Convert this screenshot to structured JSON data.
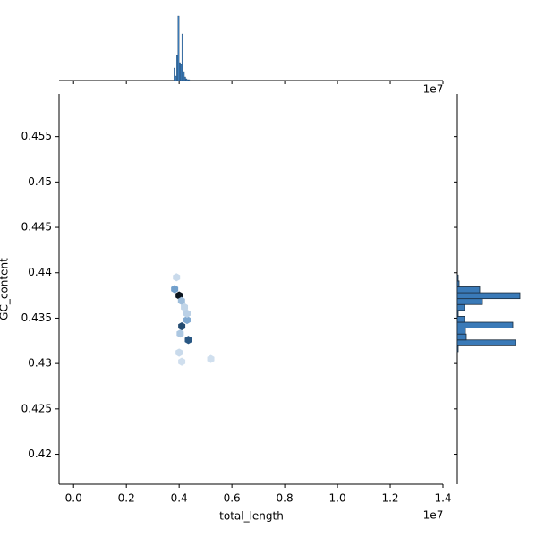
{
  "chart_data": {
    "type": "hexbin",
    "xlabel": "total_length",
    "ylabel": "GC_content",
    "offset_text": "1e7",
    "color": "#3a7ab8",
    "xlim": [
      -0.055,
      1.4
    ],
    "ylim": [
      0.4167,
      0.4597
    ],
    "xticks": [
      {
        "value": 0,
        "label": "0.0"
      },
      0.2,
      0.4,
      0.6,
      0.8,
      {
        "value": 1,
        "label": "1.0"
      },
      1.2,
      1.4
    ],
    "yticks": [
      0.42,
      0.425,
      0.43,
      0.435,
      0.44,
      0.445,
      0.45,
      0.455
    ],
    "hexbins": {
      "x": [
        0.4,
        0.383,
        0.409,
        0.43,
        0.41,
        0.404,
        0.435,
        0.39,
        0.42,
        0.4,
        0.41,
        0.43,
        0.52
      ],
      "y": [
        0.4375,
        0.4382,
        0.4369,
        0.4348,
        0.4341,
        0.4333,
        0.4326,
        0.4395,
        0.4362,
        0.4312,
        0.4302,
        0.4355,
        0.4305
      ],
      "counts": [
        40,
        14,
        8,
        12,
        30,
        6,
        28,
        2,
        3,
        2,
        1,
        4,
        1
      ]
    },
    "x_hist": {
      "bins": [
        0.38,
        0.385,
        0.39,
        0.395,
        0.4,
        0.405,
        0.41,
        0.415,
        0.42,
        0.425,
        0.43,
        0.435,
        0.44
      ],
      "counts": [
        14,
        5,
        28,
        72,
        20,
        18,
        52,
        10,
        4,
        2,
        1,
        1
      ]
    },
    "y_hist": {
      "bins": [
        0.4313,
        0.43195,
        0.4326,
        0.43325,
        0.4339,
        0.43455,
        0.4352,
        0.43585,
        0.4365,
        0.43715,
        0.4378,
        0.43845,
        0.4391,
        0.43975
      ],
      "counts": [
        1,
        65,
        10,
        9,
        62,
        8,
        1,
        8,
        28,
        70,
        25,
        2,
        1
      ]
    }
  }
}
